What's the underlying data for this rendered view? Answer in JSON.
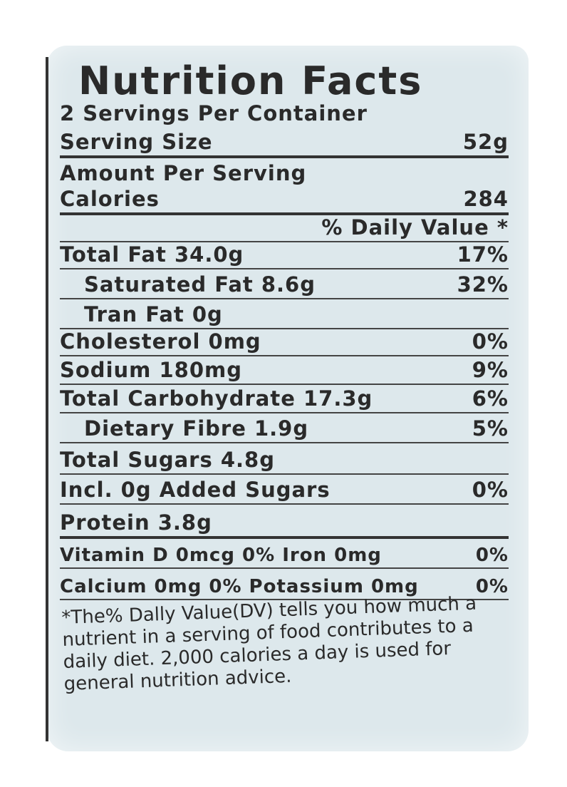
{
  "title": "Nutrition Facts",
  "servings": "2 Servings Per Container",
  "serving_size": {
    "label": "Serving Size",
    "value": "52g"
  },
  "amount_per_serving": "Amount Per Serving",
  "calories": {
    "label": "Calories",
    "value": "284"
  },
  "dv_header": "% Daily Value *",
  "nutrients": [
    {
      "label": "Total Fat 34.0g",
      "dv": "17%"
    },
    {
      "label": "Saturated Fat  8.6g",
      "dv": "32%"
    },
    {
      "label": "Tran Fat  0g",
      "dv": ""
    },
    {
      "label": "Cholesterol 0mg",
      "dv": "0%"
    },
    {
      "label": "Sodium 180mg",
      "dv": "9%"
    },
    {
      "label": "Total Carbohydrate 17.3g",
      "dv": "6%"
    },
    {
      "label": "Dietary Fibre  1.9g",
      "dv": "5%"
    },
    {
      "label": "Total Sugars 4.8g",
      "dv": ""
    },
    {
      "label": "Incl. 0g Added Sugars",
      "dv": "0%"
    },
    {
      "label": "Protein 3.8g",
      "dv": ""
    }
  ],
  "vitamins": [
    {
      "label": "Vitamin D 0mcg  0%  Iron 0mg",
      "dv": "0%"
    },
    {
      "label": "Calcium 0mg  0%  Potassium 0mg",
      "dv": "0%"
    }
  ],
  "footnote": "*The% Dally Value(DV) tells you how much a nutrient in a serving of food contributes to a daily diet. 2,000 calories a day is used for general nutrition advice."
}
